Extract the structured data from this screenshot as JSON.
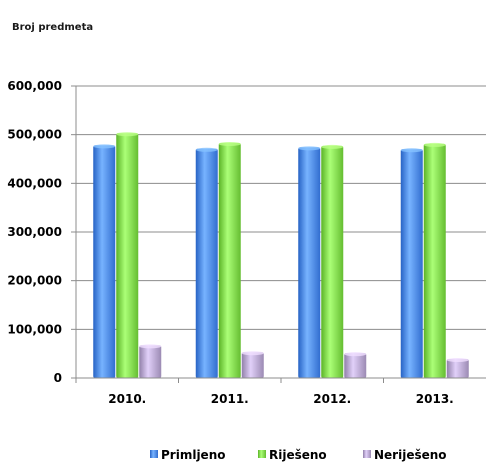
{
  "chart_data": {
    "type": "bar",
    "title": "Broj predmeta",
    "categories": [
      "2010.",
      "2011.",
      "2012.",
      "2013."
    ],
    "series": [
      {
        "name": "Primljeno",
        "values": [
          478000,
          471000,
          474000,
          470000
        ],
        "color": "#4a86e8"
      },
      {
        "name": "Riješeno",
        "values": [
          503000,
          483000,
          477000,
          481000
        ],
        "color": "#7ed64a"
      },
      {
        "name": "Neriješeno",
        "values": [
          67000,
          53000,
          51000,
          39000
        ],
        "color": "#b4a3cc"
      }
    ],
    "yticks": [
      "0",
      "100,000",
      "200,000",
      "300,000",
      "400,000",
      "500,000",
      "600,000"
    ],
    "ylim": [
      0,
      600000
    ],
    "grid": true,
    "legend_position": "bottom"
  }
}
